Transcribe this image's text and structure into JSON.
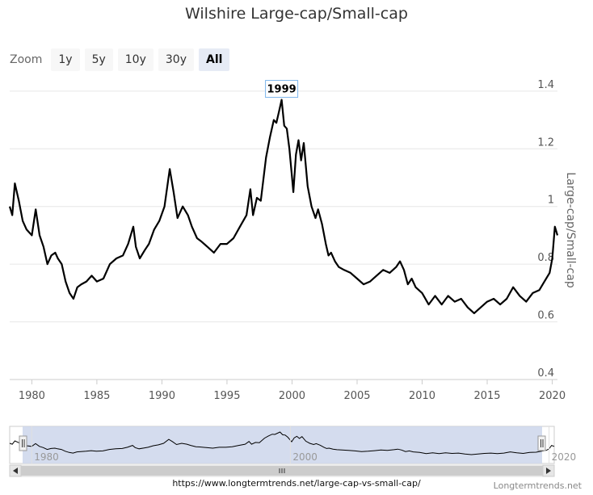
{
  "title": "Wilshire Large-cap/Small-cap",
  "zoom": {
    "label": "Zoom",
    "buttons": [
      "1y",
      "5y",
      "10y",
      "30y",
      "All"
    ],
    "active": "All"
  },
  "footer": {
    "url": "https://www.longtermtrends.net/large-cap-vs-small-cap/",
    "brand": "Longtermtrends.net"
  },
  "colors": {
    "line": "#000000",
    "grid": "#e6e6e6",
    "navigator_fill": "#ccd6eb",
    "annotation_border": "#7cb5ec"
  },
  "chart_data": {
    "type": "line",
    "title": "Wilshire Large-cap/Small-cap",
    "ylabel": "Large-cap/Small-cap",
    "xlabel": "",
    "ylim": [
      0.4,
      1.45
    ],
    "xlim": [
      1978.3,
      2020.4
    ],
    "yticks": [
      0.4,
      0.6,
      0.8,
      1,
      1.2,
      1.4
    ],
    "xticks": [
      1980,
      1985,
      1990,
      1995,
      2000,
      2005,
      2010,
      2015,
      2020
    ],
    "navigator_ticks": [
      1980,
      2000,
      2020
    ],
    "annotation": {
      "text": "1999",
      "x": 1999.2,
      "y": 1.37
    },
    "series": [
      {
        "name": "Large-cap/Small-cap",
        "x": [
          1978.3,
          1978.5,
          1978.7,
          1979.0,
          1979.3,
          1979.6,
          1980.0,
          1980.3,
          1980.6,
          1980.9,
          1981.2,
          1981.5,
          1981.8,
          1982.0,
          1982.3,
          1982.6,
          1982.9,
          1983.2,
          1983.5,
          1983.8,
          1984.2,
          1984.6,
          1985.0,
          1985.5,
          1986.0,
          1986.5,
          1987.0,
          1987.4,
          1987.8,
          1988.0,
          1988.3,
          1988.7,
          1989.0,
          1989.4,
          1989.8,
          1990.2,
          1990.6,
          1990.9,
          1991.2,
          1991.6,
          1992.0,
          1992.3,
          1992.7,
          1993.0,
          1993.5,
          1994.0,
          1994.5,
          1995.0,
          1995.5,
          1996.0,
          1996.5,
          1996.8,
          1997.0,
          1997.3,
          1997.6,
          1998.0,
          1998.3,
          1998.6,
          1998.8,
          1999.0,
          1999.2,
          1999.4,
          1999.6,
          1999.8,
          2000.0,
          2000.1,
          2000.3,
          2000.5,
          2000.7,
          2000.9,
          2001.2,
          2001.5,
          2001.8,
          2002.0,
          2002.3,
          2002.6,
          2002.8,
          2003.0,
          2003.3,
          2003.6,
          2004.0,
          2004.5,
          2005.0,
          2005.5,
          2006.0,
          2006.5,
          2007.0,
          2007.5,
          2008.0,
          2008.3,
          2008.6,
          2008.9,
          2009.2,
          2009.5,
          2010.0,
          2010.5,
          2011.0,
          2011.5,
          2012.0,
          2012.5,
          2013.0,
          2013.5,
          2014.0,
          2014.5,
          2015.0,
          2015.5,
          2016.0,
          2016.5,
          2017.0,
          2017.5,
          2018.0,
          2018.5,
          2019.0,
          2019.4,
          2019.8,
          2020.0,
          2020.2,
          2020.4
        ],
        "values": [
          1.0,
          0.97,
          1.08,
          1.02,
          0.95,
          0.92,
          0.9,
          0.99,
          0.9,
          0.86,
          0.8,
          0.83,
          0.84,
          0.82,
          0.8,
          0.74,
          0.7,
          0.68,
          0.72,
          0.73,
          0.74,
          0.76,
          0.74,
          0.75,
          0.8,
          0.82,
          0.83,
          0.87,
          0.93,
          0.86,
          0.82,
          0.85,
          0.87,
          0.92,
          0.95,
          1.0,
          1.13,
          1.05,
          0.96,
          1.0,
          0.97,
          0.93,
          0.89,
          0.88,
          0.86,
          0.84,
          0.87,
          0.87,
          0.89,
          0.93,
          0.97,
          1.06,
          0.97,
          1.03,
          1.02,
          1.17,
          1.24,
          1.3,
          1.29,
          1.33,
          1.37,
          1.28,
          1.27,
          1.2,
          1.1,
          1.05,
          1.18,
          1.23,
          1.16,
          1.22,
          1.07,
          1.0,
          0.96,
          0.99,
          0.94,
          0.87,
          0.83,
          0.84,
          0.81,
          0.79,
          0.78,
          0.77,
          0.75,
          0.73,
          0.74,
          0.76,
          0.78,
          0.77,
          0.79,
          0.81,
          0.78,
          0.73,
          0.75,
          0.72,
          0.7,
          0.66,
          0.69,
          0.66,
          0.69,
          0.67,
          0.68,
          0.65,
          0.63,
          0.65,
          0.67,
          0.68,
          0.66,
          0.68,
          0.72,
          0.69,
          0.67,
          0.7,
          0.71,
          0.74,
          0.77,
          0.82,
          0.93,
          0.9
        ]
      }
    ]
  }
}
